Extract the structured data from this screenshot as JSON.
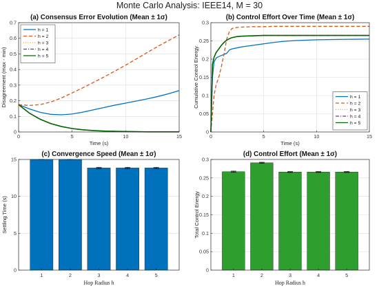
{
  "figure": {
    "title": "Monte Carlo Analysis: IEEE14, M = 30"
  },
  "chart_data": [
    {
      "id": "a",
      "type": "line",
      "title": "(a) Consensus Error Evolution (Mean ± 1σ)",
      "xlabel": "Time (s)",
      "ylabel": "Disagreement (max - min)",
      "xlim": [
        0,
        15
      ],
      "ylim": [
        0,
        0.7
      ],
      "xticks": [
        "0",
        "5",
        "10",
        "15"
      ],
      "yticks": [
        "0",
        "0.1",
        "0.2",
        "0.3",
        "0.4",
        "0.5",
        "0.6",
        "0.7"
      ],
      "grid": true,
      "legend_position": "top-left",
      "x": [
        0,
        1,
        2,
        3,
        4,
        5,
        6,
        7,
        8,
        9,
        10,
        11,
        12,
        13,
        14,
        15
      ],
      "series": [
        {
          "name": "h = 1",
          "color": "#0072BD",
          "dash": "solid",
          "values": [
            0.175,
            0.148,
            0.126,
            0.113,
            0.11,
            0.115,
            0.127,
            0.142,
            0.157,
            0.172,
            0.185,
            0.198,
            0.212,
            0.227,
            0.245,
            0.265
          ]
        },
        {
          "name": "h = 2",
          "color": "#D95319",
          "dash": "dashed",
          "values": [
            0.175,
            0.17,
            0.175,
            0.192,
            0.218,
            0.25,
            0.283,
            0.318,
            0.353,
            0.39,
            0.428,
            0.468,
            0.508,
            0.548,
            0.585,
            0.622
          ]
        },
        {
          "name": "h = 3",
          "color": "#EDB120",
          "dash": "dotted",
          "values": [
            0.175,
            0.121,
            0.082,
            0.054,
            0.035,
            0.022,
            0.014,
            0.009,
            0.006,
            0.004,
            0.003,
            0.002,
            0.001,
            0.001,
            0.001,
            0.001
          ]
        },
        {
          "name": "h = 4",
          "color": "#7E2F8E",
          "dash": "dashdot",
          "values": [
            0.175,
            0.121,
            0.082,
            0.054,
            0.035,
            0.022,
            0.014,
            0.009,
            0.006,
            0.004,
            0.003,
            0.002,
            0.001,
            0.001,
            0.001,
            0.001
          ]
        },
        {
          "name": "h = 5",
          "color": "#006400",
          "dash": "solid",
          "values": [
            0.175,
            0.121,
            0.082,
            0.054,
            0.035,
            0.022,
            0.014,
            0.009,
            0.006,
            0.004,
            0.003,
            0.002,
            0.001,
            0.001,
            0.001,
            0.001
          ]
        }
      ]
    },
    {
      "id": "b",
      "type": "line",
      "title": "(b) Control Effort Over Time (Mean ± 1σ)",
      "xlabel": "Time (s)",
      "ylabel": "Cumulative Control Energy",
      "xlim": [
        0,
        15
      ],
      "ylim": [
        0,
        0.3
      ],
      "xticks": [
        "0",
        "5",
        "10",
        "15"
      ],
      "yticks": [
        "0",
        "0.05",
        "0.1",
        "0.15",
        "0.2",
        "0.25",
        "0.3"
      ],
      "grid": true,
      "legend_position": "bottom-right",
      "x": [
        0,
        0.15,
        0.3,
        0.5,
        0.75,
        1.0,
        1.25,
        1.5,
        1.75,
        2.0,
        2.5,
        3,
        4,
        5,
        6,
        7,
        8,
        10,
        12,
        15
      ],
      "series": [
        {
          "name": "h = 1",
          "color": "#0072BD",
          "dash": "solid",
          "values": [
            0,
            0.15,
            0.192,
            0.203,
            0.207,
            0.21,
            0.213,
            0.216,
            0.225,
            0.228,
            0.231,
            0.234,
            0.238,
            0.242,
            0.246,
            0.249,
            0.251,
            0.253,
            0.254,
            0.255
          ]
        },
        {
          "name": "h = 2",
          "color": "#D95319",
          "dash": "dashed",
          "values": [
            0,
            0.05,
            0.1,
            0.13,
            0.15,
            0.18,
            0.215,
            0.255,
            0.275,
            0.284,
            0.287,
            0.288,
            0.289,
            0.289,
            0.29,
            0.29,
            0.29,
            0.29,
            0.29,
            0.29
          ]
        },
        {
          "name": "h = 3",
          "color": "#EDB120",
          "dash": "dotted",
          "values": [
            0,
            0.185,
            0.205,
            0.218,
            0.228,
            0.238,
            0.246,
            0.252,
            0.256,
            0.259,
            0.262,
            0.263,
            0.264,
            0.265,
            0.265,
            0.265,
            0.265,
            0.265,
            0.265,
            0.265
          ]
        },
        {
          "name": "h = 4",
          "color": "#7E2F8E",
          "dash": "dashdot",
          "values": [
            0,
            0.185,
            0.205,
            0.218,
            0.228,
            0.238,
            0.246,
            0.252,
            0.256,
            0.259,
            0.262,
            0.263,
            0.264,
            0.265,
            0.265,
            0.265,
            0.265,
            0.265,
            0.265,
            0.265
          ]
        },
        {
          "name": "h = 5",
          "color": "#006400",
          "dash": "solid",
          "values": [
            0,
            0.185,
            0.205,
            0.218,
            0.228,
            0.238,
            0.246,
            0.252,
            0.256,
            0.259,
            0.262,
            0.263,
            0.264,
            0.265,
            0.265,
            0.265,
            0.265,
            0.265,
            0.265,
            0.265
          ]
        }
      ]
    },
    {
      "id": "c",
      "type": "bar",
      "title": "(c) Convergence Speed (Mean ± 1σ)",
      "xlabel": "Hop Radius h",
      "ylabel": "Settling Time (s)",
      "ylim": [
        0,
        15
      ],
      "yticks": [
        "0",
        "5",
        "10",
        "15"
      ],
      "grid": true,
      "color": "#0072BD",
      "categories": [
        "1",
        "2",
        "3",
        "4",
        "5"
      ],
      "values": [
        15.0,
        15.0,
        13.85,
        13.85,
        13.85
      ],
      "errors": [
        0,
        0,
        0.08,
        0.08,
        0.08
      ]
    },
    {
      "id": "d",
      "type": "bar",
      "title": "(d) Control Effort (Mean ± 1σ)",
      "xlabel": "Hop Radius h",
      "ylabel": "Total Control Energy",
      "ylim": [
        0,
        0.3
      ],
      "yticks": [
        "0",
        "0.05",
        "0.1",
        "0.15",
        "0.2",
        "0.25",
        "0.3"
      ],
      "grid": true,
      "color": "#2E9E2E",
      "categories": [
        "1",
        "2",
        "3",
        "4",
        "5"
      ],
      "values": [
        0.267,
        0.291,
        0.266,
        0.266,
        0.266
      ],
      "errors": [
        0.0015,
        0.0015,
        0.0012,
        0.0012,
        0.0012
      ]
    }
  ]
}
